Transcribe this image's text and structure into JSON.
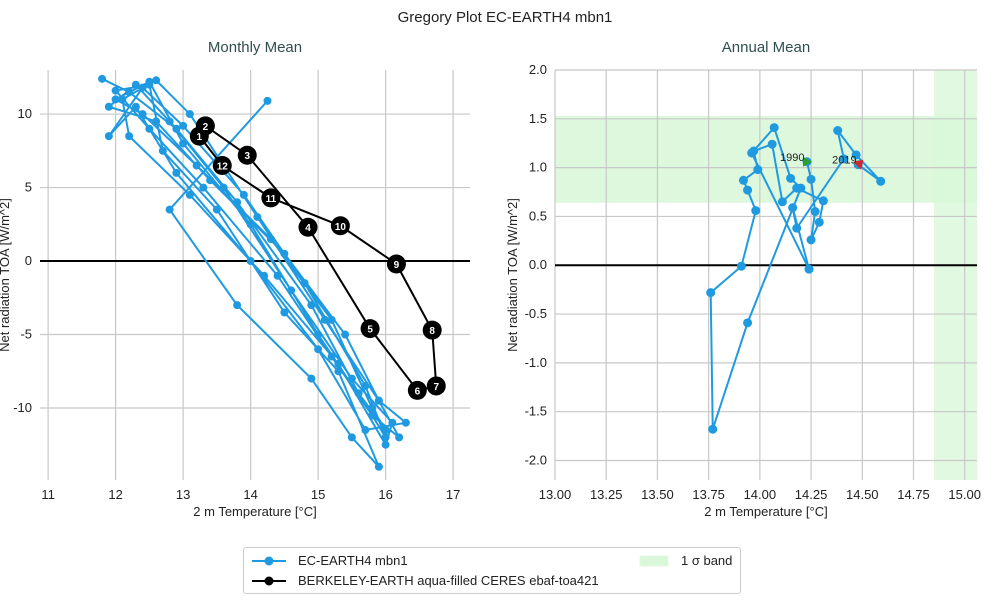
{
  "title": "Gregory Plot EC-EARTH4 mbn1",
  "colors": {
    "model": "#1f9ae0",
    "obs": "#000000",
    "band": "#d9f7d9",
    "start": "#2ca02c",
    "end": "#d62728"
  },
  "legend": {
    "model": "EC-EARTH4 mbn1",
    "obs": "BERKELEY-EARTH aqua-filled CERES ebaf-toa421",
    "band": "1 σ band"
  },
  "chart_data": [
    {
      "type": "line",
      "title": "Monthly Mean",
      "xlabel": "2 m Temperature [°C]",
      "ylabel": "Net radiation TOA [W/m^2]",
      "xlim": [
        10.88,
        17.25
      ],
      "ylim": [
        -14.9,
        13.0
      ],
      "xticks": [
        "11",
        "12",
        "13",
        "14",
        "15",
        "16",
        "17"
      ],
      "yticks": [
        "-10",
        "-5",
        "0",
        "5",
        "10"
      ],
      "grid": true,
      "series": [
        {
          "name": "EC-EARTH4 mbn1",
          "x": [
            11.8,
            12.2,
            12.9,
            13.8,
            14.9,
            15.6,
            16.0,
            15.8,
            15.2,
            14.3,
            13.2,
            12.4,
            12.0,
            12.5,
            13.0,
            14.0,
            15.0,
            15.8,
            16.2,
            15.9,
            15.4,
            14.5,
            13.4,
            12.6,
            11.9,
            12.3,
            12.8,
            13.6,
            14.6,
            15.5,
            16.1,
            16.0,
            15.3,
            14.2,
            13.1,
            12.2,
            12.1,
            12.6,
            13.1,
            14.1,
            15.1,
            15.9,
            16.3,
            15.7,
            15.0,
            14.0,
            12.9,
            12.3,
            11.9,
            12.4,
            13.0,
            13.9,
            14.8,
            15.7,
            16.0,
            15.8,
            15.2,
            14.4,
            13.3,
            12.5,
            12.0,
            12.5,
            12.7,
            13.5,
            14.5,
            15.3,
            15.9,
            15.5,
            14.9,
            13.8,
            12.8,
            14.25
          ],
          "y": [
            12.4,
            11.5,
            9.0,
            4.0,
            -3.0,
            -9.0,
            -11.5,
            -10.0,
            -4.0,
            1.5,
            6.5,
            10.0,
            11.0,
            12.2,
            8.0,
            2.5,
            -5.0,
            -10.5,
            -12.0,
            -9.5,
            -5.0,
            0.5,
            5.5,
            9.5,
            10.5,
            12.0,
            9.5,
            5.0,
            -2.0,
            -8.0,
            -11.0,
            -12.5,
            -7.0,
            -1.0,
            4.5,
            8.5,
            11.0,
            12.3,
            10.0,
            3.0,
            -4.0,
            -9.5,
            -11.0,
            -11.5,
            -6.0,
            0.0,
            6.0,
            10.5,
            8.5,
            11.8,
            9.2,
            4.5,
            -1.5,
            -8.5,
            -12.0,
            -10.5,
            -6.5,
            -1.0,
            5.0,
            9.0,
            11.6,
            12.0,
            7.5,
            3.5,
            -3.5,
            -7.5,
            -14.0,
            -12.0,
            -8.0,
            -3.0,
            3.5,
            10.9
          ]
        },
        {
          "name": "BERKELEY-EARTH aqua-filled CERES ebaf-toa421",
          "labels": [
            "1",
            "2",
            "3",
            "4",
            "5",
            "6",
            "7",
            "8",
            "9",
            "10",
            "11",
            "12"
          ],
          "x": [
            13.24,
            13.33,
            13.95,
            14.85,
            15.77,
            16.47,
            16.75,
            16.69,
            16.16,
            15.33,
            14.3,
            13.58
          ],
          "y": [
            8.5,
            9.2,
            7.2,
            2.3,
            -4.6,
            -8.8,
            -8.5,
            -4.7,
            -0.2,
            2.4,
            4.3,
            6.5
          ]
        }
      ]
    },
    {
      "type": "line",
      "title": "Annual Mean",
      "xlabel": "2 m Temperature [°C]",
      "ylabel": "Net radiation TOA [W/m^2]",
      "xlim": [
        13.0,
        15.06
      ],
      "ylim": [
        -2.2,
        2.0
      ],
      "xticks": [
        "13.00",
        "13.25",
        "13.50",
        "13.75",
        "14.00",
        "14.25",
        "14.50",
        "14.75",
        "15.00"
      ],
      "yticks": [
        "-2.0",
        "-1.5",
        "-1.0",
        "-0.5",
        "0.0",
        "0.5",
        "1.0",
        "1.5",
        "2.0"
      ],
      "grid": true,
      "band": {
        "y": [
          0.64,
          1.53
        ],
        "x": [
          14.85,
          15.06
        ]
      },
      "annotations": [
        "1990",
        "2019"
      ],
      "series": [
        {
          "name": "EC-EARTH4 mbn1",
          "x": [
            14.23,
            14.25,
            14.27,
            14.25,
            14.29,
            14.31,
            14.18,
            14.11,
            14.06,
            13.97,
            13.99,
            13.92,
            13.94,
            13.98,
            13.91,
            13.76,
            13.77,
            13.94,
            14.2,
            14.15,
            14.07,
            13.96,
            14.24,
            14.16,
            14.18,
            14.41,
            14.38,
            14.47,
            14.59,
            14.48
          ],
          "y": [
            1.06,
            0.88,
            0.55,
            0.26,
            0.44,
            0.66,
            0.79,
            0.65,
            1.24,
            1.17,
            0.98,
            0.87,
            0.77,
            0.56,
            -0.01,
            -0.28,
            -1.68,
            -0.59,
            0.79,
            0.89,
            1.41,
            1.15,
            -0.04,
            0.59,
            0.38,
            1.09,
            1.38,
            1.13,
            0.86,
            1.03
          ]
        }
      ]
    }
  ]
}
